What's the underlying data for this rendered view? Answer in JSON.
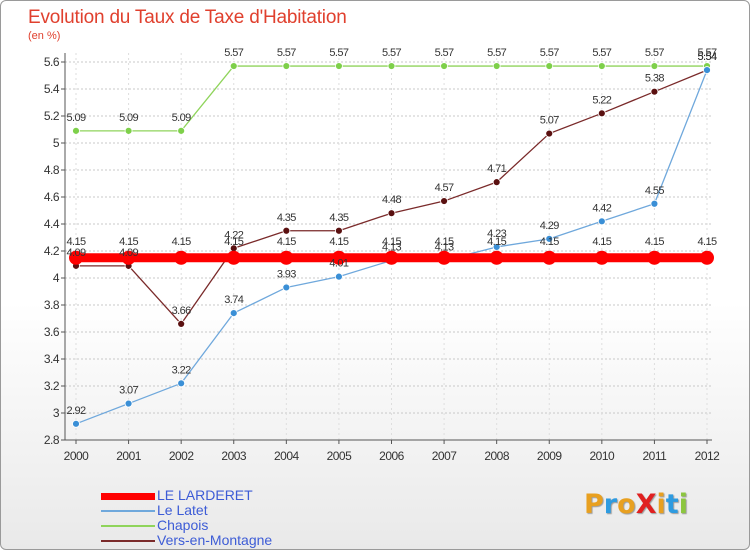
{
  "header": {
    "title": "Evolution du Taux de Taxe d'Habitation",
    "subtitle": "(en %)"
  },
  "logo": {
    "text": "ProXiti",
    "letters": [
      {
        "ch": "P",
        "color": "#e8a020"
      },
      {
        "ch": "r",
        "color": "#2e9be0"
      },
      {
        "ch": "o",
        "color": "#e8a020"
      },
      {
        "ch": "X",
        "color": "#e02020"
      },
      {
        "ch": "i",
        "color": "#e8a020"
      },
      {
        "ch": "t",
        "color": "#2e9be0"
      },
      {
        "ch": "i",
        "color": "#8cc63f"
      }
    ]
  },
  "chart_data": {
    "type": "line",
    "title": "Evolution du Taux de Taxe d'Habitation",
    "ylabel": "(en %)",
    "xlabel": "",
    "ylim": [
      2.8,
      5.6
    ],
    "yticks": [
      "2.8",
      "3",
      "3.2",
      "3.4",
      "3.6",
      "3.8",
      "4",
      "4.2",
      "4.4",
      "4.6",
      "4.8",
      "5",
      "5.2",
      "5.4",
      "5.6"
    ],
    "x": [
      "2000",
      "2001",
      "2002",
      "2003",
      "2004",
      "2005",
      "2006",
      "2007",
      "2008",
      "2009",
      "2010",
      "2011",
      "2012"
    ],
    "grid": "horizontal dashed",
    "legend": "bottom-left",
    "series": [
      {
        "name": "LE LARDERET",
        "color": "#ff0000",
        "values": [
          4.15,
          4.15,
          4.15,
          4.15,
          4.15,
          4.15,
          4.15,
          4.15,
          4.15,
          4.15,
          4.15,
          4.15,
          4.15
        ],
        "labels": [
          "4.15",
          "4.15",
          "4.15",
          "4.15",
          "4.15",
          "4.15",
          "4.15",
          "4.15",
          "4.15",
          "4.15",
          "4.15",
          "4.15",
          "4.15"
        ]
      },
      {
        "name": "Le Latet",
        "color": "#6fa8dc",
        "values": [
          2.92,
          3.07,
          3.22,
          3.74,
          3.93,
          4.01,
          4.13,
          4.13,
          4.23,
          4.29,
          4.42,
          4.55,
          5.54
        ],
        "labels": [
          "2.92",
          "3.07",
          "3.22",
          "3.74",
          "3.93",
          "4.01",
          "4.13",
          "4.13",
          "4.23",
          "4.29",
          "4.42",
          "4.55",
          "5.54"
        ]
      },
      {
        "name": "Chapois",
        "color": "#8fd45b",
        "values": [
          5.09,
          5.09,
          5.09,
          5.57,
          5.57,
          5.57,
          5.57,
          5.57,
          5.57,
          5.57,
          5.57,
          5.57,
          5.57
        ],
        "labels": [
          "5.09",
          "5.09",
          "5.09",
          "5.57",
          "5.57",
          "5.57",
          "5.57",
          "5.57",
          "5.57",
          "5.57",
          "5.57",
          "5.57",
          "5.57"
        ]
      },
      {
        "name": "Vers-en-Montagne",
        "color": "#7a2a2a",
        "values": [
          4.09,
          4.09,
          3.66,
          4.22,
          4.35,
          4.35,
          4.48,
          4.57,
          4.71,
          5.07,
          5.22,
          5.38,
          5.54
        ],
        "labels": [
          "4.09",
          "4.09",
          "3.66",
          "4.22",
          "4.35",
          "4.35",
          "4.48",
          "4.57",
          "4.71",
          "5.07",
          "5.22",
          "5.38",
          "5.54"
        ]
      }
    ]
  }
}
